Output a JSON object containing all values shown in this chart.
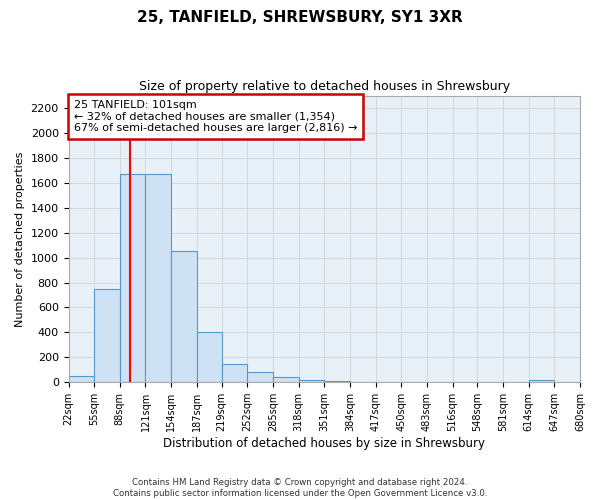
{
  "title": "25, TANFIELD, SHREWSBURY, SY1 3XR",
  "subtitle": "Size of property relative to detached houses in Shrewsbury",
  "xlabel": "Distribution of detached houses by size in Shrewsbury",
  "ylabel": "Number of detached properties",
  "footnote": "Contains HM Land Registry data © Crown copyright and database right 2024.\nContains public sector information licensed under the Open Government Licence v3.0.",
  "bin_edges": [
    22,
    55,
    88,
    121,
    154,
    187,
    219,
    252,
    285,
    318,
    351,
    384,
    417,
    450,
    483,
    516,
    548,
    581,
    614,
    647,
    680
  ],
  "bar_heights": [
    50,
    750,
    1670,
    1670,
    1050,
    400,
    150,
    80,
    40,
    20,
    10,
    5,
    5,
    5,
    5,
    3,
    3,
    3,
    20,
    3
  ],
  "bar_facecolor": "#cfe2f3",
  "bar_edgecolor": "#5599cc",
  "grid_color": "#cccccc",
  "background_color": "#e8f0f8",
  "red_line_x": 101,
  "annotation_text": "25 TANFIELD: 101sqm\n← 32% of detached houses are smaller (1,354)\n67% of semi-detached houses are larger (2,816) →",
  "annotation_box_color": "#cc0000",
  "ylim": [
    0,
    2300
  ],
  "yticks": [
    0,
    200,
    400,
    600,
    800,
    1000,
    1200,
    1400,
    1600,
    1800,
    2000,
    2200
  ]
}
